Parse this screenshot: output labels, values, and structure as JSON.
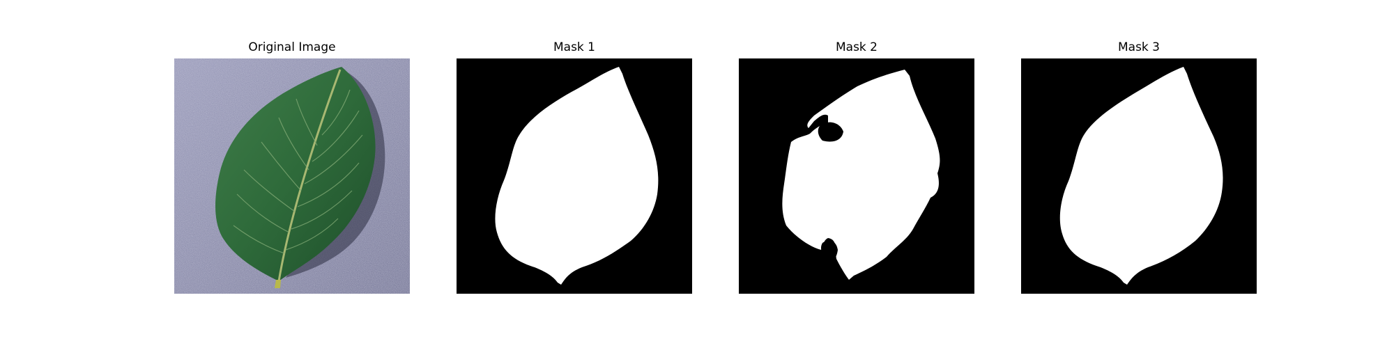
{
  "figure": {
    "panels": [
      {
        "title": "Original Image",
        "kind": "photo"
      },
      {
        "title": "Mask 1",
        "kind": "mask"
      },
      {
        "title": "Mask 2",
        "kind": "mask"
      },
      {
        "title": "Mask 3",
        "kind": "mask"
      }
    ]
  },
  "colors": {
    "background": "#ffffff",
    "mask_background": "#000000",
    "mask_foreground": "#ffffff",
    "photo_background": "#8f90ae",
    "leaf_fill": "#2f6b3b",
    "leaf_vein": "#a8b872"
  }
}
